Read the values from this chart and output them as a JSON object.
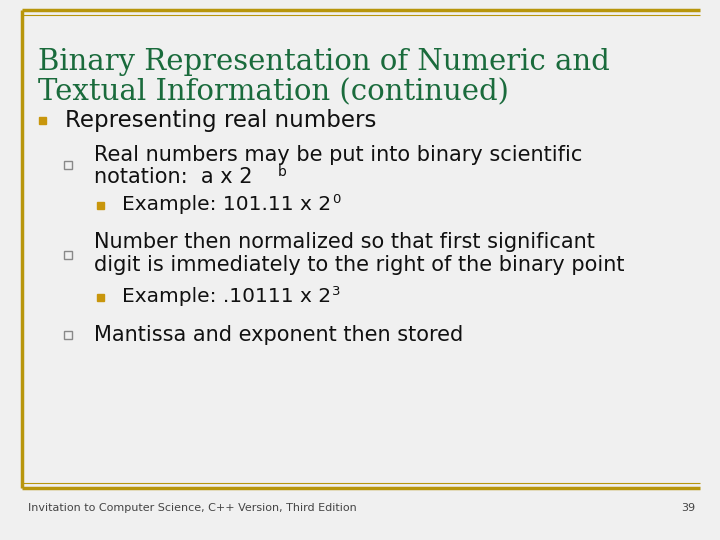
{
  "title_line1": "Binary Representation of Numeric and",
  "title_line2": "Textual Information (continued)",
  "title_color": "#1a6b3c",
  "background_color": "#f0f0f0",
  "border_color": "#b8960c",
  "text_color": "#111111",
  "footer_text": "Invitation to Computer Science, C++ Version, Third Edition",
  "footer_page": "39",
  "items": [
    {
      "level": 1,
      "bullet_type": "filled_square",
      "bullet_color": "#c8960c",
      "lines": [
        [
          "Representing real numbers",
          ""
        ]
      ]
    },
    {
      "level": 2,
      "bullet_type": "open_square",
      "bullet_color": "#666666",
      "lines": [
        [
          "Real numbers may be put into binary scientific",
          ""
        ],
        [
          "notation:  a x 2",
          "b"
        ]
      ]
    },
    {
      "level": 3,
      "bullet_type": "filled_square",
      "bullet_color": "#c8960c",
      "lines": [
        [
          "Example: 101.11 x 2",
          "0"
        ]
      ]
    },
    {
      "level": 2,
      "bullet_type": "open_square",
      "bullet_color": "#666666",
      "lines": [
        [
          "Number then normalized so that first significant",
          ""
        ],
        [
          "digit is immediately to the right of the binary point",
          ""
        ]
      ]
    },
    {
      "level": 3,
      "bullet_type": "filled_square",
      "bullet_color": "#c8960c",
      "lines": [
        [
          "Example: .10111 x 2",
          "3"
        ]
      ]
    },
    {
      "level": 2,
      "bullet_type": "open_square",
      "bullet_color": "#666666",
      "lines": [
        [
          "Mantissa and exponent then stored",
          ""
        ]
      ]
    }
  ]
}
